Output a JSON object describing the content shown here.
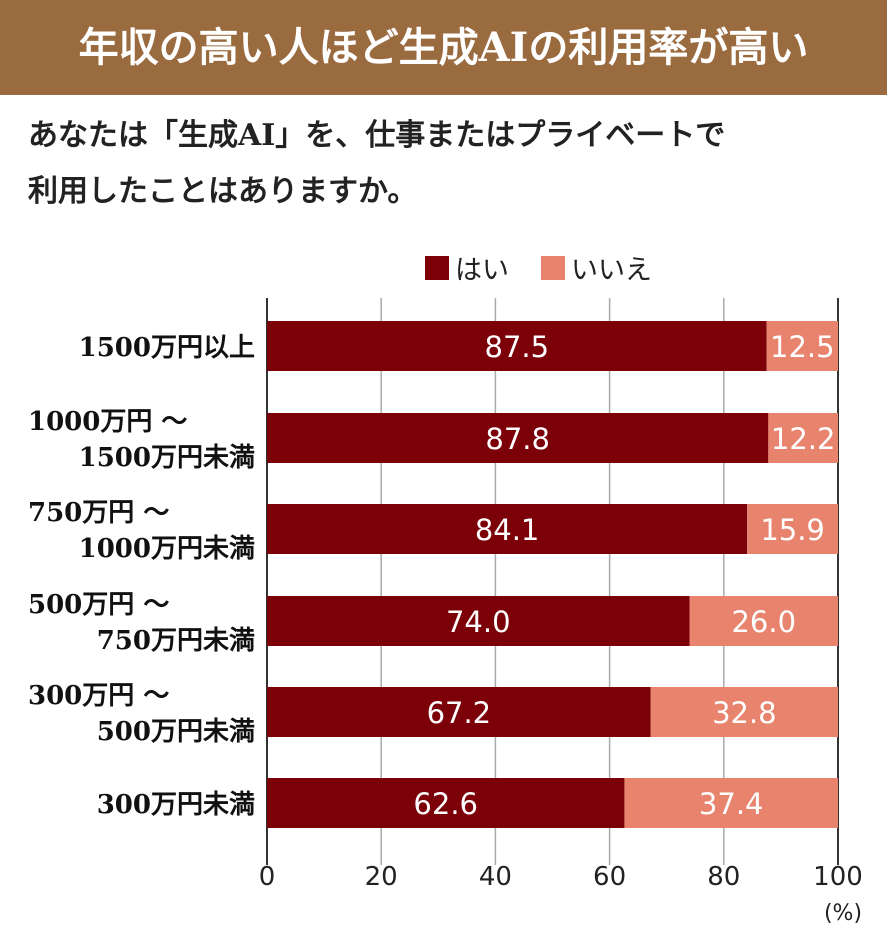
{
  "header": {
    "title": "年収の高い人ほど生成AIの利用率が高い",
    "question_line1": "あなたは「生成AI」を、仕事またはプライベートで",
    "question_line2": "利用したことはありますか。"
  },
  "chart_data": {
    "type": "bar",
    "orientation": "horizontal",
    "stacked": true,
    "categories": [
      [
        "1500万円以上"
      ],
      [
        "1000万円 ～",
        "1500万円未満"
      ],
      [
        "750万円 ～",
        "1000万円未満"
      ],
      [
        "500万円 ～",
        "750万円未満"
      ],
      [
        "300万円 ～",
        "500万円未満"
      ],
      [
        "300万円未満"
      ]
    ],
    "series": [
      {
        "name": "はい",
        "color": "#7b0008",
        "values": [
          87.5,
          87.8,
          84.1,
          74.0,
          67.2,
          62.6
        ]
      },
      {
        "name": "いいえ",
        "color": "#e8846e",
        "values": [
          12.5,
          12.2,
          15.9,
          26.0,
          32.8,
          37.4
        ]
      }
    ],
    "xlim": [
      0,
      100
    ],
    "xticks": [
      "0",
      "20",
      "40",
      "60",
      "80",
      "100"
    ],
    "xunit": "(%)",
    "grid": "vertical",
    "legend": "top"
  }
}
